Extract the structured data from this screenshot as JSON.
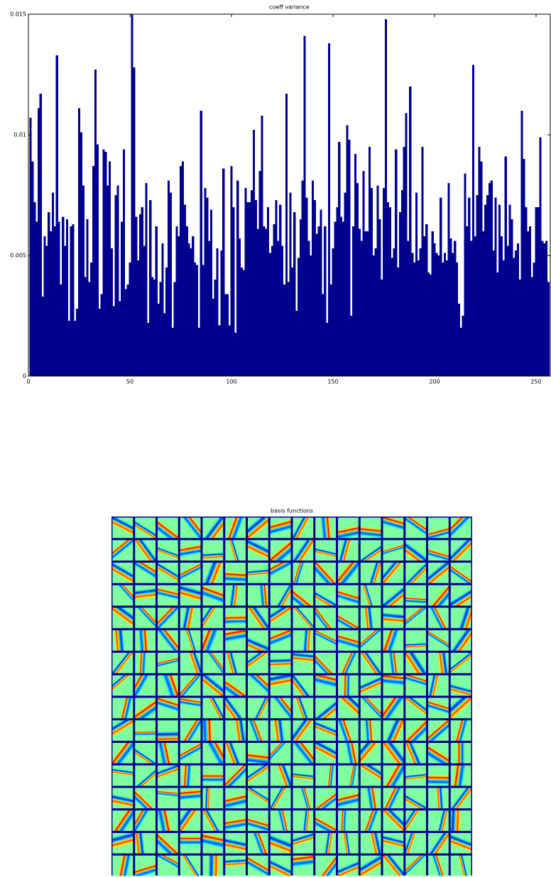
{
  "chart_data": [
    {
      "type": "bar",
      "title": "coeff variance",
      "color": "#00008f",
      "xlim": [
        0,
        257
      ],
      "xticks": [
        0,
        50,
        100,
        150,
        200,
        250
      ],
      "ylim": [
        0,
        0.015
      ],
      "yticks": [
        0,
        0.005,
        0.01,
        0.015
      ],
      "x": [
        1,
        2,
        3,
        4,
        5,
        6,
        7,
        8,
        9,
        10,
        11,
        12,
        13,
        14,
        15,
        16,
        17,
        18,
        19,
        20,
        21,
        22,
        23,
        24,
        25,
        26,
        27,
        28,
        29,
        30,
        31,
        32,
        33,
        34,
        35,
        36,
        37,
        38,
        39,
        40,
        41,
        42,
        43,
        44,
        45,
        46,
        47,
        48,
        49,
        50,
        51,
        52,
        53,
        54,
        55,
        56,
        57,
        58,
        59,
        60,
        61,
        62,
        63,
        64,
        65,
        66,
        67,
        68,
        69,
        70,
        71,
        72,
        73,
        74,
        75,
        76,
        77,
        78,
        79,
        80,
        81,
        82,
        83,
        84,
        85,
        86,
        87,
        88,
        89,
        90,
        91,
        92,
        93,
        94,
        95,
        96,
        97,
        98,
        99,
        100,
        101,
        102,
        103,
        104,
        105,
        106,
        107,
        108,
        109,
        110,
        111,
        112,
        113,
        114,
        115,
        116,
        117,
        118,
        119,
        120,
        121,
        122,
        123,
        124,
        125,
        126,
        127,
        128,
        129,
        130,
        131,
        132,
        133,
        134,
        135,
        136,
        137,
        138,
        139,
        140,
        141,
        142,
        143,
        144,
        145,
        146,
        147,
        148,
        149,
        150,
        151,
        152,
        153,
        154,
        155,
        156,
        157,
        158,
        159,
        160,
        161,
        162,
        163,
        164,
        165,
        166,
        167,
        168,
        169,
        170,
        171,
        172,
        173,
        174,
        175,
        176,
        177,
        178,
        179,
        180,
        181,
        182,
        183,
        184,
        185,
        186,
        187,
        188,
        189,
        190,
        191,
        192,
        193,
        194,
        195,
        196,
        197,
        198,
        199,
        200,
        201,
        202,
        203,
        204,
        205,
        206,
        207,
        208,
        209,
        210,
        211,
        212,
        213,
        214,
        215,
        216,
        217,
        218,
        219,
        220,
        221,
        222,
        223,
        224,
        225,
        226,
        227,
        228,
        229,
        230,
        231,
        232,
        233,
        234,
        235,
        236,
        237,
        238,
        239,
        240,
        241,
        242,
        243,
        244,
        245,
        246,
        247,
        248,
        249,
        250,
        251,
        252,
        253,
        254,
        255,
        256
      ],
      "values": [
        0.0107,
        0.0089,
        0.0072,
        0.0064,
        0.0111,
        0.0117,
        0.0033,
        0.0058,
        0.0054,
        0.0068,
        0.006,
        0.0076,
        0.0062,
        0.0133,
        0.0064,
        0.0038,
        0.0066,
        0.0054,
        0.0065,
        0.0023,
        0.0062,
        0.0063,
        0.0023,
        0.0028,
        0.0111,
        0.0101,
        0.0079,
        0.0041,
        0.0065,
        0.0039,
        0.0047,
        0.0087,
        0.0127,
        0.0096,
        0.0028,
        0.0034,
        0.0094,
        0.0093,
        0.0079,
        0.0089,
        0.0053,
        0.0029,
        0.0075,
        0.0079,
        0.0031,
        0.0064,
        0.0094,
        0.0036,
        0.0038,
        0.0047,
        0.015,
        0.0128,
        0.0066,
        0.0048,
        0.0067,
        0.007,
        0.0054,
        0.008,
        0.0022,
        0.0073,
        0.0041,
        0.004,
        0.0062,
        0.003,
        0.0039,
        0.0055,
        0.0026,
        0.0045,
        0.0081,
        0.0076,
        0.002,
        0.0039,
        0.0062,
        0.0058,
        0.0087,
        0.0089,
        0.0071,
        0.0062,
        0.0055,
        0.0053,
        0.0058,
        0.0047,
        0.0046,
        0.002,
        0.011,
        0.0046,
        0.0078,
        0.0074,
        0.0056,
        0.0069,
        0.0032,
        0.004,
        0.0053,
        0.0021,
        0.0052,
        0.0086,
        0.0034,
        0.0034,
        0.0021,
        0.0087,
        0.007,
        0.0018,
        0.0081,
        0.0057,
        0.0045,
        0.0044,
        0.0078,
        0.0072,
        0.0072,
        0.0077,
        0.0102,
        0.0073,
        0.0061,
        0.0085,
        0.0108,
        0.0062,
        0.0061,
        0.007,
        0.0051,
        0.0054,
        0.0063,
        0.0073,
        0.0056,
        0.0071,
        0.0054,
        0.0038,
        0.0117,
        0.0039,
        0.0076,
        0.0045,
        0.0068,
        0.0027,
        0.0049,
        0.0065,
        0.0081,
        0.0141,
        0.0074,
        0.0056,
        0.005,
        0.0081,
        0.0073,
        0.0059,
        0.0062,
        0.0069,
        0.0034,
        0.0062,
        0.0022,
        0.0138,
        0.0038,
        0.0053,
        0.0064,
        0.007,
        0.0097,
        0.0066,
        0.0064,
        0.0076,
        0.0104,
        0.0098,
        0.0025,
        0.0062,
        0.0092,
        0.008,
        0.0061,
        0.0056,
        0.0085,
        0.006,
        0.006,
        0.0095,
        0.0078,
        0.005,
        0.0053,
        0.0079,
        0.0065,
        0.004,
        0.0078,
        0.0148,
        0.0072,
        0.007,
        0.0049,
        0.0053,
        0.0094,
        0.0045,
        0.0068,
        0.0077,
        0.0095,
        0.0109,
        0.0056,
        0.012,
        0.0051,
        0.0047,
        0.0076,
        0.0048,
        0.0053,
        0.0095,
        0.0058,
        0.0063,
        0.0043,
        0.0042,
        0.006,
        0.0055,
        0.0051,
        0.005,
        0.0074,
        0.0047,
        0.0051,
        0.0048,
        0.008,
        0.0057,
        0.0051,
        0.0056,
        0.0047,
        0.003,
        0.002,
        0.0025,
        0.0084,
        0.0062,
        0.0074,
        0.0056,
        0.0129,
        0.0058,
        0.0075,
        0.0095,
        0.0089,
        0.006,
        0.0071,
        0.0075,
        0.008,
        0.0081,
        0.0052,
        0.0074,
        0.0043,
        0.0071,
        0.0058,
        0.0048,
        0.0091,
        0.0054,
        0.0071,
        0.0065,
        0.0049,
        0.0052,
        0.0055,
        0.004,
        0.011,
        0.009,
        0.007,
        0.006,
        0.0062,
        0.0041,
        0.0047,
        0.007,
        0.007,
        0.0099,
        0.0056,
        0.0055,
        0.0056,
        0.0039
      ]
    },
    {
      "type": "image-grid",
      "title": "basis functions"
    }
  ]
}
